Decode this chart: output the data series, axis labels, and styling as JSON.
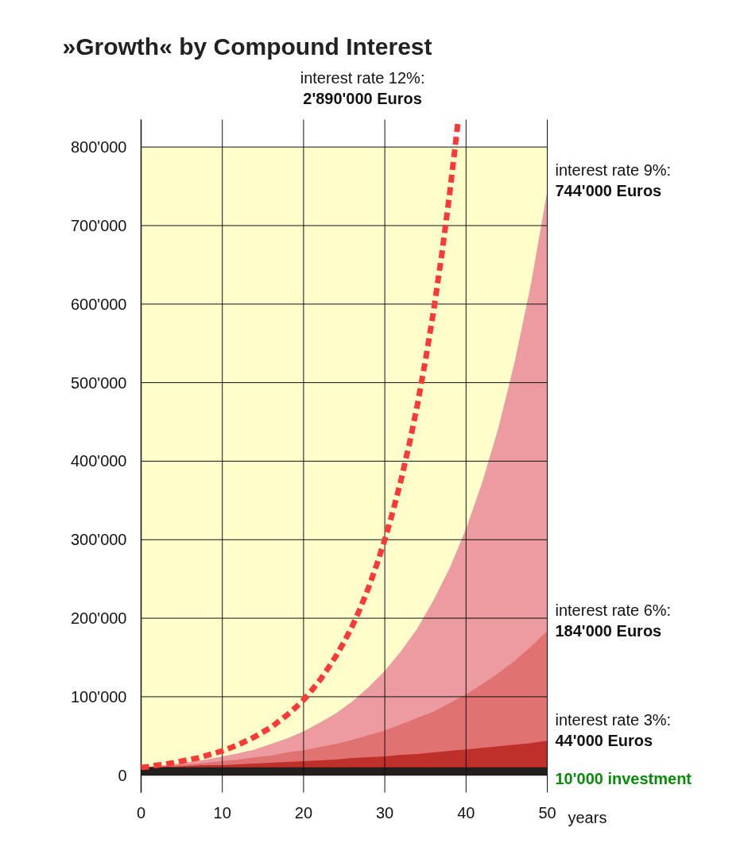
{
  "chart_data": {
    "type": "area",
    "title": "»Growth« by Compound Interest",
    "xlabel": "years",
    "x": [
      0,
      2,
      4,
      6,
      8,
      10,
      12,
      14,
      16,
      18,
      20,
      22,
      24,
      26,
      28,
      30,
      32,
      34,
      36,
      38,
      40,
      42,
      44,
      46,
      48,
      50
    ],
    "xlim": [
      0,
      50
    ],
    "xticks": [
      0,
      10,
      20,
      30,
      40,
      50
    ],
    "ylim": [
      -22000,
      835000
    ],
    "yticks": [
      {
        "value": 0,
        "label": "0"
      },
      {
        "value": 100000,
        "label": "100'000"
      },
      {
        "value": 200000,
        "label": "200'000"
      },
      {
        "value": 300000,
        "label": "300'000"
      },
      {
        "value": 400000,
        "label": "400'000"
      },
      {
        "value": 500000,
        "label": "500'000"
      },
      {
        "value": 600000,
        "label": "600'000"
      },
      {
        "value": 700000,
        "label": "700'000"
      },
      {
        "value": 800000,
        "label": "800'000"
      }
    ],
    "grid": true,
    "bands": [
      {
        "axis": "y",
        "from": 0,
        "to": 800000,
        "color": "#ffffcc"
      }
    ],
    "series": [
      {
        "color": "#ec9ba0",
        "values": [
          10000,
          12000,
          14000,
          17000,
          20000,
          24000,
          28000,
          33000,
          40000,
          47000,
          56000,
          67000,
          79000,
          94000,
          112000,
          133000,
          158000,
          187000,
          223000,
          264000,
          314000,
          373000,
          443000,
          527000,
          626000,
          744000
        ]
      },
      {
        "color": "#e07272",
        "values": [
          10000,
          11000,
          13000,
          14000,
          16000,
          18000,
          20000,
          23000,
          25000,
          29000,
          32000,
          36000,
          40000,
          45000,
          51000,
          57000,
          65000,
          73000,
          81000,
          92000,
          103000,
          116000,
          130000,
          146000,
          164000,
          184000
        ]
      },
      {
        "color": "#c0302a",
        "values": [
          10000,
          11000,
          11000,
          12000,
          13000,
          13000,
          14000,
          15000,
          16000,
          17000,
          18000,
          19000,
          20000,
          22000,
          23000,
          24000,
          26000,
          27000,
          29000,
          31000,
          33000,
          35000,
          37000,
          39000,
          41000,
          44000
        ]
      },
      {
        "name": "10'000 investment",
        "color": "#231f1f",
        "x": [
          0,
          50
        ],
        "values": [
          10000,
          10000
        ]
      },
      {
        "type": "line",
        "color": "#ff3838",
        "line_style": "dashed",
        "marker": "none",
        "x": [
          0,
          1,
          2,
          3,
          4,
          5,
          6,
          7,
          8,
          9,
          10,
          11,
          12,
          13,
          14,
          15,
          16,
          17,
          18,
          19,
          20,
          21,
          22,
          23,
          24,
          25,
          26,
          27,
          28,
          29,
          30,
          31,
          32,
          33,
          34,
          35,
          36,
          37,
          38,
          39
        ],
        "values": [
          10000,
          11000,
          13000,
          14000,
          16000,
          18000,
          20000,
          22000,
          25000,
          28000,
          31000,
          35000,
          39000,
          44000,
          49000,
          55000,
          61000,
          69000,
          77000,
          86000,
          96000,
          108000,
          121000,
          136000,
          152000,
          170000,
          190000,
          213000,
          239000,
          268000,
          300000,
          336000,
          376000,
          421000,
          471000,
          528000,
          591000,
          662000,
          742000,
          831000
        ]
      }
    ],
    "annotations": [
      "interest rate 9%:",
      "744'000 Euros",
      "interest rate 6%:",
      "184'000 Euros",
      "interest rate 3%:",
      "44'000 Euros",
      "interest rate 12%:",
      "2'890'000 Euros"
    ]
  }
}
